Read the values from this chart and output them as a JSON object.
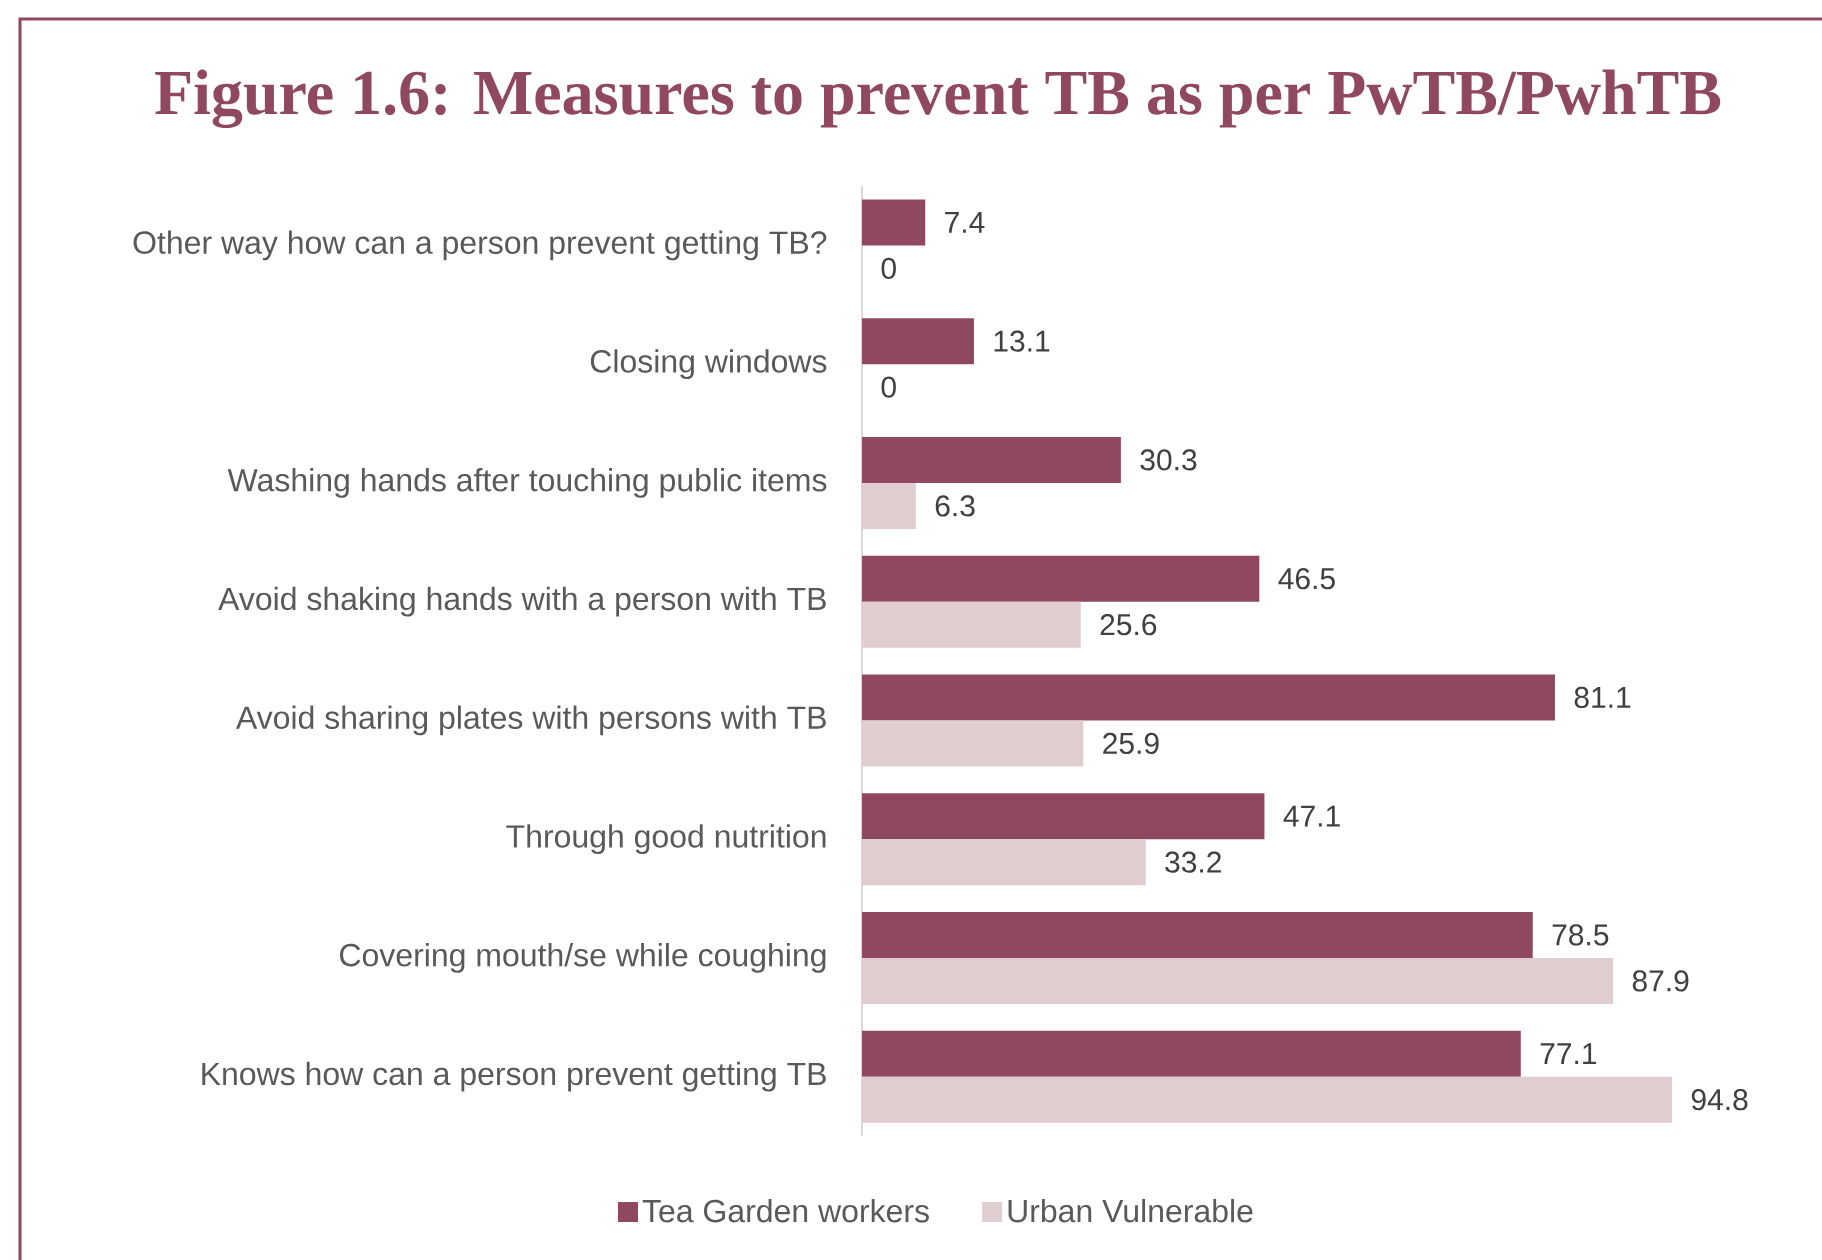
{
  "chart_data": {
    "type": "bar",
    "orientation": "horizontal",
    "title": "Figure 1.6: Measures to prevent TB as per PwTB/PwhTB",
    "categories": [
      "Other way how can a person prevent getting TB?",
      "Closing windows",
      "Washing hands after touching public items",
      "Avoid shaking hands with a person with TB",
      "Avoid sharing plates with persons with TB",
      "Through good nutrition",
      "Covering mouth/se while coughing",
      "Knows how can a person prevent getting TB"
    ],
    "series": [
      {
        "name": "Tea Garden workers",
        "color": "#8f4860",
        "values": [
          7.4,
          13.1,
          30.3,
          46.5,
          81.1,
          47.1,
          78.5,
          77.1
        ]
      },
      {
        "name": "Urban Vulnerable",
        "color": "#dfcdd0",
        "values": [
          0,
          0,
          6.3,
          25.6,
          25.9,
          33.2,
          87.9,
          94.8
        ]
      }
    ],
    "data_labels": true,
    "legend": "bottom"
  }
}
